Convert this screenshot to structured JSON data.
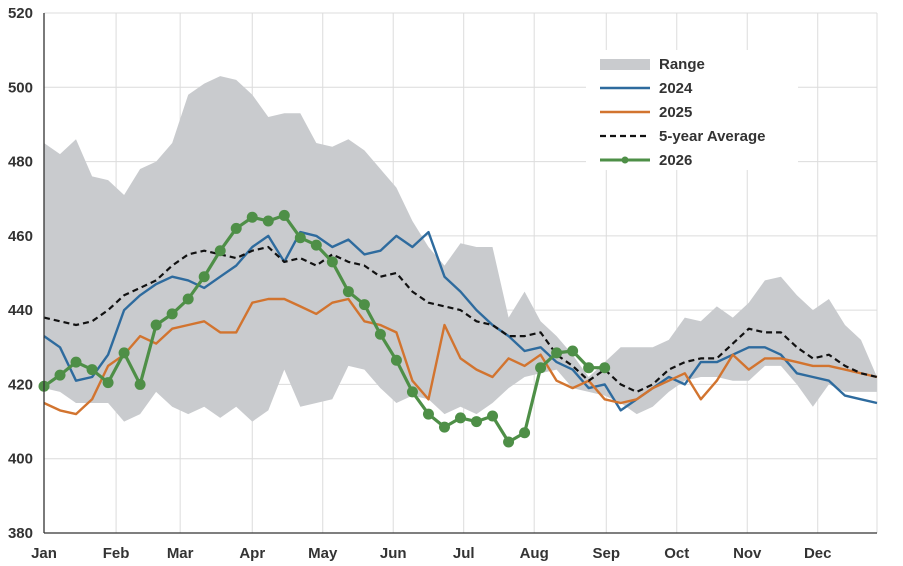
{
  "chart_data": {
    "type": "line",
    "title": "",
    "xlabel": "",
    "ylabel": "",
    "ylim": [
      380,
      520
    ],
    "yticks": [
      380,
      400,
      420,
      440,
      460,
      480,
      500,
      520
    ],
    "xlim": [
      1,
      53
    ],
    "month_ticks": [
      {
        "label": "Jan",
        "week": 1
      },
      {
        "label": "Feb",
        "week": 5.5
      },
      {
        "label": "Mar",
        "week": 9.5
      },
      {
        "label": "Apr",
        "week": 14
      },
      {
        "label": "May",
        "week": 18.4
      },
      {
        "label": "Jun",
        "week": 22.8
      },
      {
        "label": "Jul",
        "week": 27.2
      },
      {
        "label": "Aug",
        "week": 31.6
      },
      {
        "label": "Sep",
        "week": 36.1
      },
      {
        "label": "Oct",
        "week": 40.5
      },
      {
        "label": "Nov",
        "week": 44.9
      },
      {
        "label": "Dec",
        "week": 49.3
      }
    ],
    "grid": true,
    "legend_position": "top-right",
    "colors": {
      "range": "#c9cbce",
      "2024": "#2e6b9e",
      "2025": "#d2742f",
      "avg": "#111111",
      "2026": "#4e8f47"
    },
    "range": {
      "name": "Range",
      "x": [
        1,
        2,
        3,
        4,
        5,
        6,
        7,
        8,
        9,
        10,
        11,
        12,
        13,
        14,
        15,
        16,
        17,
        18,
        19,
        20,
        21,
        22,
        23,
        24,
        25,
        26,
        27,
        28,
        29,
        30,
        31,
        32,
        33,
        34,
        35,
        36,
        37,
        38,
        39,
        40,
        41,
        42,
        43,
        44,
        45,
        46,
        47,
        48,
        49,
        50,
        51,
        52,
        53
      ],
      "upper": [
        485,
        482,
        486,
        476,
        475,
        471,
        478,
        480,
        485,
        498,
        501,
        503,
        502,
        498,
        492,
        493,
        493,
        485,
        484,
        486,
        483,
        478,
        473,
        464,
        457,
        452,
        458,
        457,
        457,
        438,
        445,
        437,
        433,
        428,
        422,
        426,
        430,
        430,
        430,
        432,
        438,
        437,
        441,
        438,
        442,
        448,
        449,
        444,
        440,
        443,
        436,
        432,
        422
      ],
      "lower": [
        419,
        418,
        415,
        415,
        415,
        410,
        412,
        418,
        414,
        412,
        414,
        411,
        414,
        410,
        413,
        424,
        414,
        415,
        416,
        425,
        424,
        419,
        415,
        417,
        416,
        412,
        414,
        412,
        415,
        419,
        422,
        423,
        424,
        419,
        418,
        417,
        415,
        412,
        414,
        418,
        421,
        422,
        422,
        421,
        421,
        425,
        425,
        420,
        414,
        420,
        418,
        418,
        418
      ]
    },
    "series": [
      {
        "name": "2024",
        "x": [
          1,
          2,
          3,
          4,
          5,
          6,
          7,
          8,
          9,
          10,
          11,
          12,
          13,
          14,
          15,
          16,
          17,
          18,
          19,
          20,
          21,
          22,
          23,
          24,
          25,
          26,
          27,
          28,
          29,
          30,
          31,
          32,
          33,
          34,
          35,
          36,
          37,
          38,
          39,
          40,
          41,
          42,
          43,
          44,
          45,
          46,
          47,
          48,
          49,
          50,
          51,
          52,
          53
        ],
        "values": [
          433,
          430,
          421,
          422,
          428,
          440,
          444,
          447,
          449,
          448,
          446,
          449,
          452,
          457,
          460,
          453,
          461,
          460,
          457,
          459,
          455,
          456,
          460,
          457,
          461,
          449,
          445,
          440,
          436,
          433,
          429,
          430,
          426,
          424,
          419,
          420,
          413,
          416,
          419,
          422,
          420,
          426,
          426,
          428,
          430,
          430,
          428,
          423,
          422,
          421,
          417,
          416,
          415
        ]
      },
      {
        "name": "2025",
        "x": [
          1,
          2,
          3,
          4,
          5,
          6,
          7,
          8,
          9,
          10,
          11,
          12,
          13,
          14,
          15,
          16,
          17,
          18,
          19,
          20,
          21,
          22,
          23,
          24,
          25,
          26,
          27,
          28,
          29,
          30,
          31,
          32,
          33,
          34,
          35,
          36,
          37,
          38,
          39,
          40,
          41,
          42,
          43,
          44,
          45,
          46,
          47,
          48,
          49,
          50,
          51,
          52,
          53
        ],
        "values": [
          415,
          413,
          412,
          416,
          425,
          428,
          433,
          431,
          435,
          436,
          437,
          434,
          434,
          442,
          443,
          443,
          441,
          439,
          442,
          443,
          437,
          436,
          434,
          421,
          416,
          436,
          427,
          424,
          422,
          427,
          425,
          428,
          421,
          419,
          421,
          416,
          415,
          416,
          419,
          421,
          423,
          416,
          421,
          428,
          424,
          427,
          427,
          426,
          425,
          425,
          424,
          423,
          422
        ]
      },
      {
        "name": "5-year Average",
        "dashed": true,
        "x": [
          1,
          2,
          3,
          4,
          5,
          6,
          7,
          8,
          9,
          10,
          11,
          12,
          13,
          14,
          15,
          16,
          17,
          18,
          19,
          20,
          21,
          22,
          23,
          24,
          25,
          26,
          27,
          28,
          29,
          30,
          31,
          32,
          33,
          34,
          35,
          36,
          37,
          38,
          39,
          40,
          41,
          42,
          43,
          44,
          45,
          46,
          47,
          48,
          49,
          50,
          51,
          52,
          53
        ],
        "values": [
          438,
          437,
          436,
          437,
          440,
          444,
          446,
          448,
          452,
          455,
          456,
          455,
          454,
          456,
          457,
          453,
          454,
          452,
          455,
          453,
          452,
          449,
          450,
          445,
          442,
          441,
          440,
          437,
          436,
          433,
          433,
          434,
          428,
          425,
          421,
          424,
          420,
          418,
          420,
          424,
          426,
          427,
          427,
          431,
          435,
          434,
          434,
          430,
          427,
          428,
          425,
          423,
          422
        ]
      },
      {
        "name": "2026",
        "markers": true,
        "x": [
          1,
          2,
          3,
          4,
          5,
          6,
          7,
          8,
          9,
          10,
          11,
          12,
          13,
          14,
          15,
          16,
          17,
          18,
          19,
          20,
          21,
          22,
          23,
          24,
          25,
          26,
          27,
          28,
          29,
          30,
          31,
          32,
          33,
          34,
          35,
          36
        ],
        "values": [
          419.5,
          422.5,
          426,
          424,
          420.5,
          428.5,
          420,
          436,
          439,
          443,
          449,
          456,
          462,
          465,
          464,
          465.5,
          459.5,
          457.5,
          453,
          445,
          441.5,
          433.5,
          426.5,
          418,
          412,
          408.5,
          411,
          410,
          411.5,
          404.5,
          407,
          424.5,
          428.5,
          429,
          424.5,
          424.5
        ]
      }
    ],
    "legend": [
      {
        "label": "Range",
        "kind": "band"
      },
      {
        "label": "2024",
        "kind": "line"
      },
      {
        "label": "2025",
        "kind": "line"
      },
      {
        "label": "5-year Average",
        "kind": "dashed"
      },
      {
        "label": "2026",
        "kind": "marker-line"
      }
    ]
  }
}
